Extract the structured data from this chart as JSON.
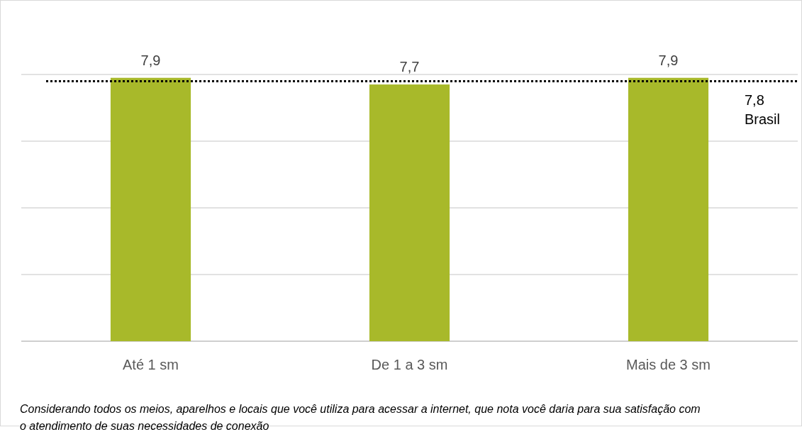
{
  "chart_data": {
    "type": "bar",
    "categories": [
      "Até 1 sm",
      "De 1 a 3 sm",
      "Mais de 3 sm"
    ],
    "values": [
      7.9,
      7.7,
      7.9
    ],
    "color": "#a8b92a",
    "value_labels": [
      "7,9",
      "7,7",
      "7,9"
    ],
    "ylim": [
      0,
      8
    ],
    "yticks": [
      {
        "value": 0,
        "label": null
      },
      {
        "value": 2,
        "label": null
      },
      {
        "value": 4,
        "label": null
      },
      {
        "value": 6,
        "label": null
      },
      {
        "value": 8,
        "label": null
      }
    ],
    "grid": "y",
    "tick_labels": "x",
    "ref_lines": [
      {
        "axis": "y",
        "value": 7.8,
        "label": "7,8\nBrasil",
        "color": "#000000",
        "line_style": "dotted"
      }
    ],
    "annotations": [
      "Considerando todos os meios, aparelhos e locais que você utiliza para acessar a internet, que nota você daria para sua satisfação com o atendimento de suas necessidades de conexão"
    ]
  }
}
